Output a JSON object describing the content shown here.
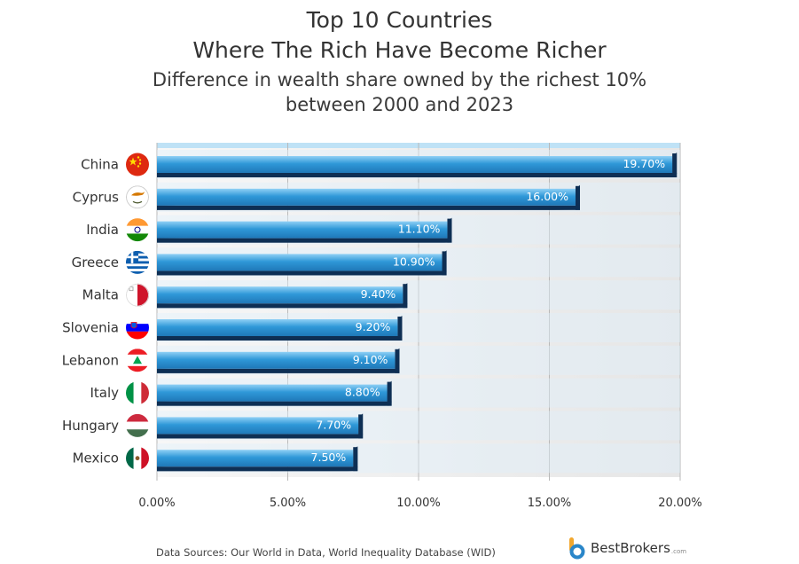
{
  "title_line1": "Top 10 Countries",
  "title_line2": "Where The Rich Have Become Richer",
  "subtitle_line1": "Difference in wealth share owned by the richest 10%",
  "subtitle_line2": "between 2000 and 2023",
  "source": "Data Sources: Our World in Data, World Inequality Database (WID)",
  "brand": {
    "name": "BestBrokers",
    "domain": ".com"
  },
  "colors": {
    "bar_top": "#8fd0f5",
    "bar_mid": "#2f98d8",
    "bar_bottom": "#1f78b8",
    "bar_shadow": "#0e2f54",
    "plot_bg_light": "#f4f4f4",
    "plot_bg_dark": "#e6e6e6",
    "plot_top_edge": "#bfe2f6",
    "label": "#333333",
    "brand_gold": "#f2a72e",
    "brand_blue": "#2a86c9"
  },
  "chart_data": {
    "type": "bar",
    "orientation": "horizontal",
    "categories": [
      "China",
      "Cyprus",
      "India",
      "Greece",
      "Malta",
      "Slovenia",
      "Lebanon",
      "Italy",
      "Hungary",
      "Mexico"
    ],
    "values": [
      19.7,
      16.0,
      11.1,
      10.9,
      9.4,
      9.2,
      9.1,
      8.8,
      7.7,
      7.5
    ],
    "value_labels": [
      "19.70%",
      "16.00%",
      "11.10%",
      "10.90%",
      "9.40%",
      "9.20%",
      "9.10%",
      "8.80%",
      "7.70%",
      "7.50%"
    ],
    "flag_icons": [
      "china-flag-icon",
      "cyprus-flag-icon",
      "india-flag-icon",
      "greece-flag-icon",
      "malta-flag-icon",
      "slovenia-flag-icon",
      "lebanon-flag-icon",
      "italy-flag-icon",
      "hungary-flag-icon",
      "mexico-flag-icon"
    ],
    "xlim": [
      0,
      20
    ],
    "xticks": [
      0,
      5,
      10,
      15,
      20
    ],
    "xtick_labels": [
      "0.00%",
      "5.00%",
      "10.00%",
      "15.00%",
      "20.00%"
    ],
    "grid": true,
    "legend": "none",
    "xlabel": "",
    "ylabel": ""
  }
}
